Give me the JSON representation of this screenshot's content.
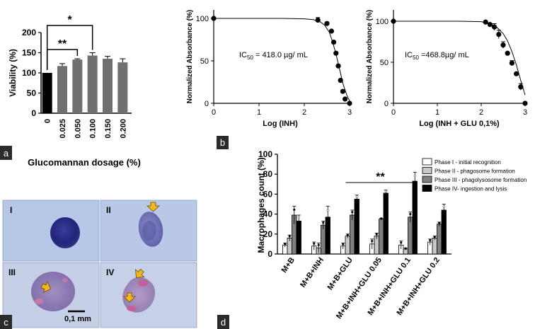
{
  "chart_data": [
    {
      "panel": "a",
      "type": "bar",
      "categories": [
        "0",
        "0.025",
        "0.050",
        "0.100",
        "0.150",
        "0.200"
      ],
      "values": [
        100,
        117,
        133,
        143,
        135,
        126
      ],
      "errors": [
        0,
        6,
        2,
        7,
        6,
        9
      ],
      "colors": [
        "#000000",
        "#707070",
        "#707070",
        "#707070",
        "#707070",
        "#707070"
      ],
      "xlabel": "Glucomannan dosage (%)",
      "ylabel": "Viability (%)",
      "ylim": [
        0,
        200
      ],
      "yticks": [
        "0",
        "50",
        "100",
        "150",
        "200"
      ],
      "significance": [
        {
          "from": 0,
          "to": 2,
          "label": "**"
        },
        {
          "from": 0,
          "to": 3,
          "label": "*"
        }
      ]
    },
    {
      "panel": "b",
      "type": "scatter",
      "xlabel": "Log (INH)",
      "ylabel": "Normalized Absorbance (%)",
      "xlim": [
        0,
        3
      ],
      "ylim": [
        0,
        100
      ],
      "xticks": [
        "0",
        "1",
        "2",
        "3"
      ],
      "yticks": [
        "0",
        "50",
        "100"
      ],
      "annotation": {
        "prefix": "IC",
        "sub": "50",
        "rest": " = 418.0 µg/ mL"
      },
      "x": [
        0,
        2.3,
        2.5,
        2.6,
        2.65,
        2.7,
        2.75,
        2.8,
        2.85,
        2.9,
        3.0
      ],
      "y": [
        100,
        98,
        94,
        85,
        72,
        59,
        44,
        27,
        14,
        5,
        0
      ],
      "errors": [
        0,
        3,
        0,
        0,
        0,
        0,
        0,
        0,
        0,
        0,
        0
      ],
      "fit_x": [
        0,
        1.5,
        2.0,
        2.2,
        2.35,
        2.45,
        2.55,
        2.62,
        2.7,
        2.78,
        2.86,
        2.95,
        3.0
      ],
      "fit_y": [
        100,
        100,
        99.5,
        98.5,
        96,
        92,
        84,
        73,
        58,
        40,
        22,
        8,
        3
      ]
    },
    {
      "panel": "b2",
      "type": "scatter",
      "xlabel": "Log (INH + GLU 0,1%)",
      "ylabel": "Normalized Absorbance (%)",
      "xlim": [
        0,
        3
      ],
      "ylim": [
        0,
        100
      ],
      "xticks": [
        "0",
        "1",
        "2",
        "3"
      ],
      "yticks": [
        "0",
        "50",
        "100"
      ],
      "annotation": {
        "prefix": "IC",
        "sub": "50",
        "rest": " =468.8µg/ mL"
      },
      "x": [
        0,
        2.1,
        2.2,
        2.3,
        2.4,
        2.5,
        2.6,
        2.7,
        2.8,
        2.9,
        3.0
      ],
      "y": [
        100,
        99,
        96,
        93,
        84,
        71,
        61,
        49,
        36,
        20,
        0
      ],
      "errors": [
        0,
        0,
        0,
        4,
        5,
        4,
        0,
        3,
        0,
        4,
        0
      ],
      "fit_x": [
        0,
        1.5,
        2.0,
        2.2,
        2.35,
        2.5,
        2.6,
        2.7,
        2.8,
        2.9,
        3.0
      ],
      "fit_y": [
        100,
        100,
        99.5,
        97,
        93,
        85,
        76,
        63,
        47,
        28,
        10
      ]
    },
    {
      "panel": "d",
      "type": "bar",
      "ylabel": "Macrophages count (%)",
      "ylim": [
        0,
        100
      ],
      "yticks": [
        "0",
        "20",
        "40",
        "60",
        "80",
        "100"
      ],
      "categories": [
        "M+B",
        "M+B+INH",
        "M+B+GLU",
        "M+B+INH+GLU 0.05",
        "M+B+INH+GLU 0.1",
        "M+B+INH+GLU 0.2"
      ],
      "series": [
        {
          "name": "Phase I - initial recognition",
          "color": "#ffffff",
          "values": [
            9,
            8,
            8,
            10,
            9,
            12
          ],
          "errors": [
            2,
            4,
            3,
            5,
            4,
            3
          ]
        },
        {
          "name": "Phase II - phagosome formation",
          "color": "#c8c8c8",
          "values": [
            16,
            6,
            18,
            18,
            5,
            16
          ],
          "errors": [
            3,
            5,
            2,
            3,
            1,
            2
          ]
        },
        {
          "name": "Phase III - phagolysosome formation",
          "color": "#808080",
          "values": [
            39,
            29,
            39,
            35,
            37,
            30
          ],
          "errors": [
            9,
            4,
            5,
            1,
            5,
            2
          ]
        },
        {
          "name": "Phase IV- ingestion and lysis",
          "color": "#000000",
          "values": [
            33,
            37,
            55,
            61,
            73,
            44
          ],
          "errors": [
            6,
            11,
            4,
            3,
            9,
            6
          ]
        }
      ],
      "significance": {
        "from": 2,
        "to": 4,
        "label": "**"
      }
    }
  ],
  "micrographs": {
    "panel_labels": [
      "I",
      "II",
      "III",
      "IV"
    ],
    "scale_bar": "0,1 mm"
  },
  "panel_tags": [
    "a",
    "b",
    "c",
    "d"
  ]
}
